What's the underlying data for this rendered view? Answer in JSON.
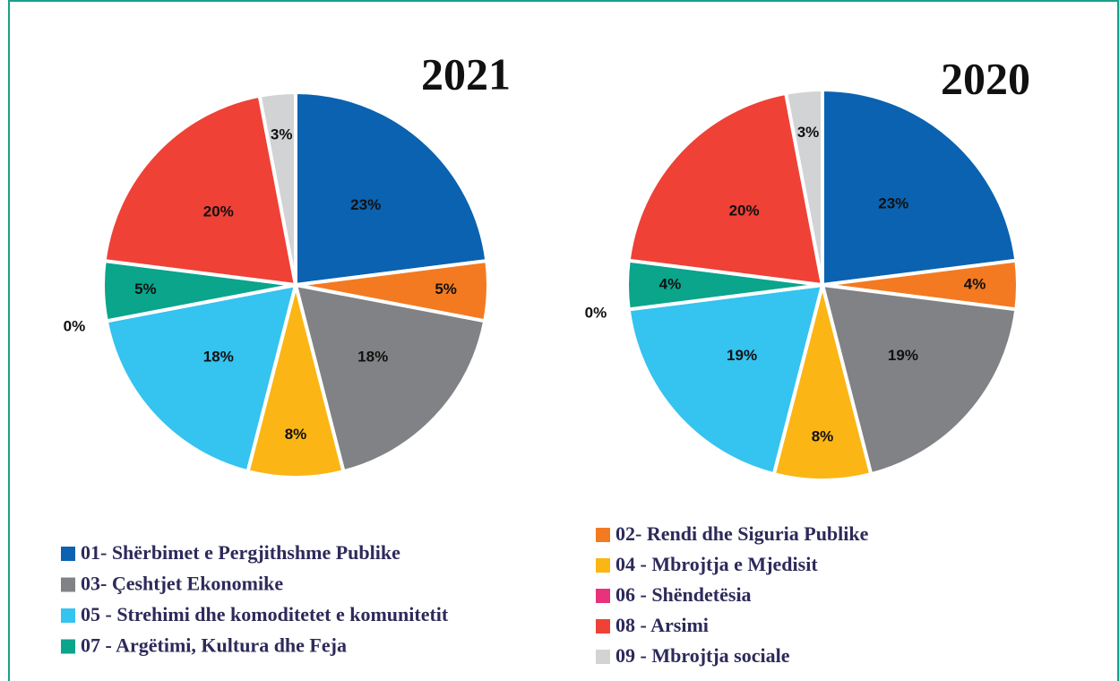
{
  "legend": {
    "categories": [
      "01- Shërbimet e Pergjithshme Publike",
      "02- Rendi dhe Siguria Publike",
      "03- Çeshtjet Ekonomike",
      "04 - Mbrojtja e Mjedisit",
      "05 - Strehimi dhe komoditetet e komunitetit",
      "06 - Shëndetësia",
      "07 - Argëtimi, Kultura dhe Feja",
      "08 - Arsimi",
      "09 - Mbrojtja sociale"
    ],
    "colors": [
      "#0a62b0",
      "#f37a21",
      "#808285",
      "#fbb615",
      "#35c3f0",
      "#e8327c",
      "#0aa58b",
      "#ef4136",
      "#d1d3d4"
    ]
  },
  "chart_data": [
    {
      "type": "pie",
      "title": "2021",
      "values": [
        23,
        5,
        18,
        8,
        18,
        0,
        5,
        20,
        3
      ],
      "value_labels": [
        "23%",
        "5%",
        "18%",
        "8%",
        "18%",
        "0%",
        "5%",
        "20%",
        "3%"
      ]
    },
    {
      "type": "pie",
      "title": "2020",
      "values": [
        23,
        4,
        19,
        8,
        19,
        0,
        4,
        20,
        3
      ],
      "value_labels": [
        "23%",
        "4%",
        "19%",
        "8%",
        "19%",
        "0%",
        "4%",
        "20%",
        "3%"
      ]
    }
  ]
}
